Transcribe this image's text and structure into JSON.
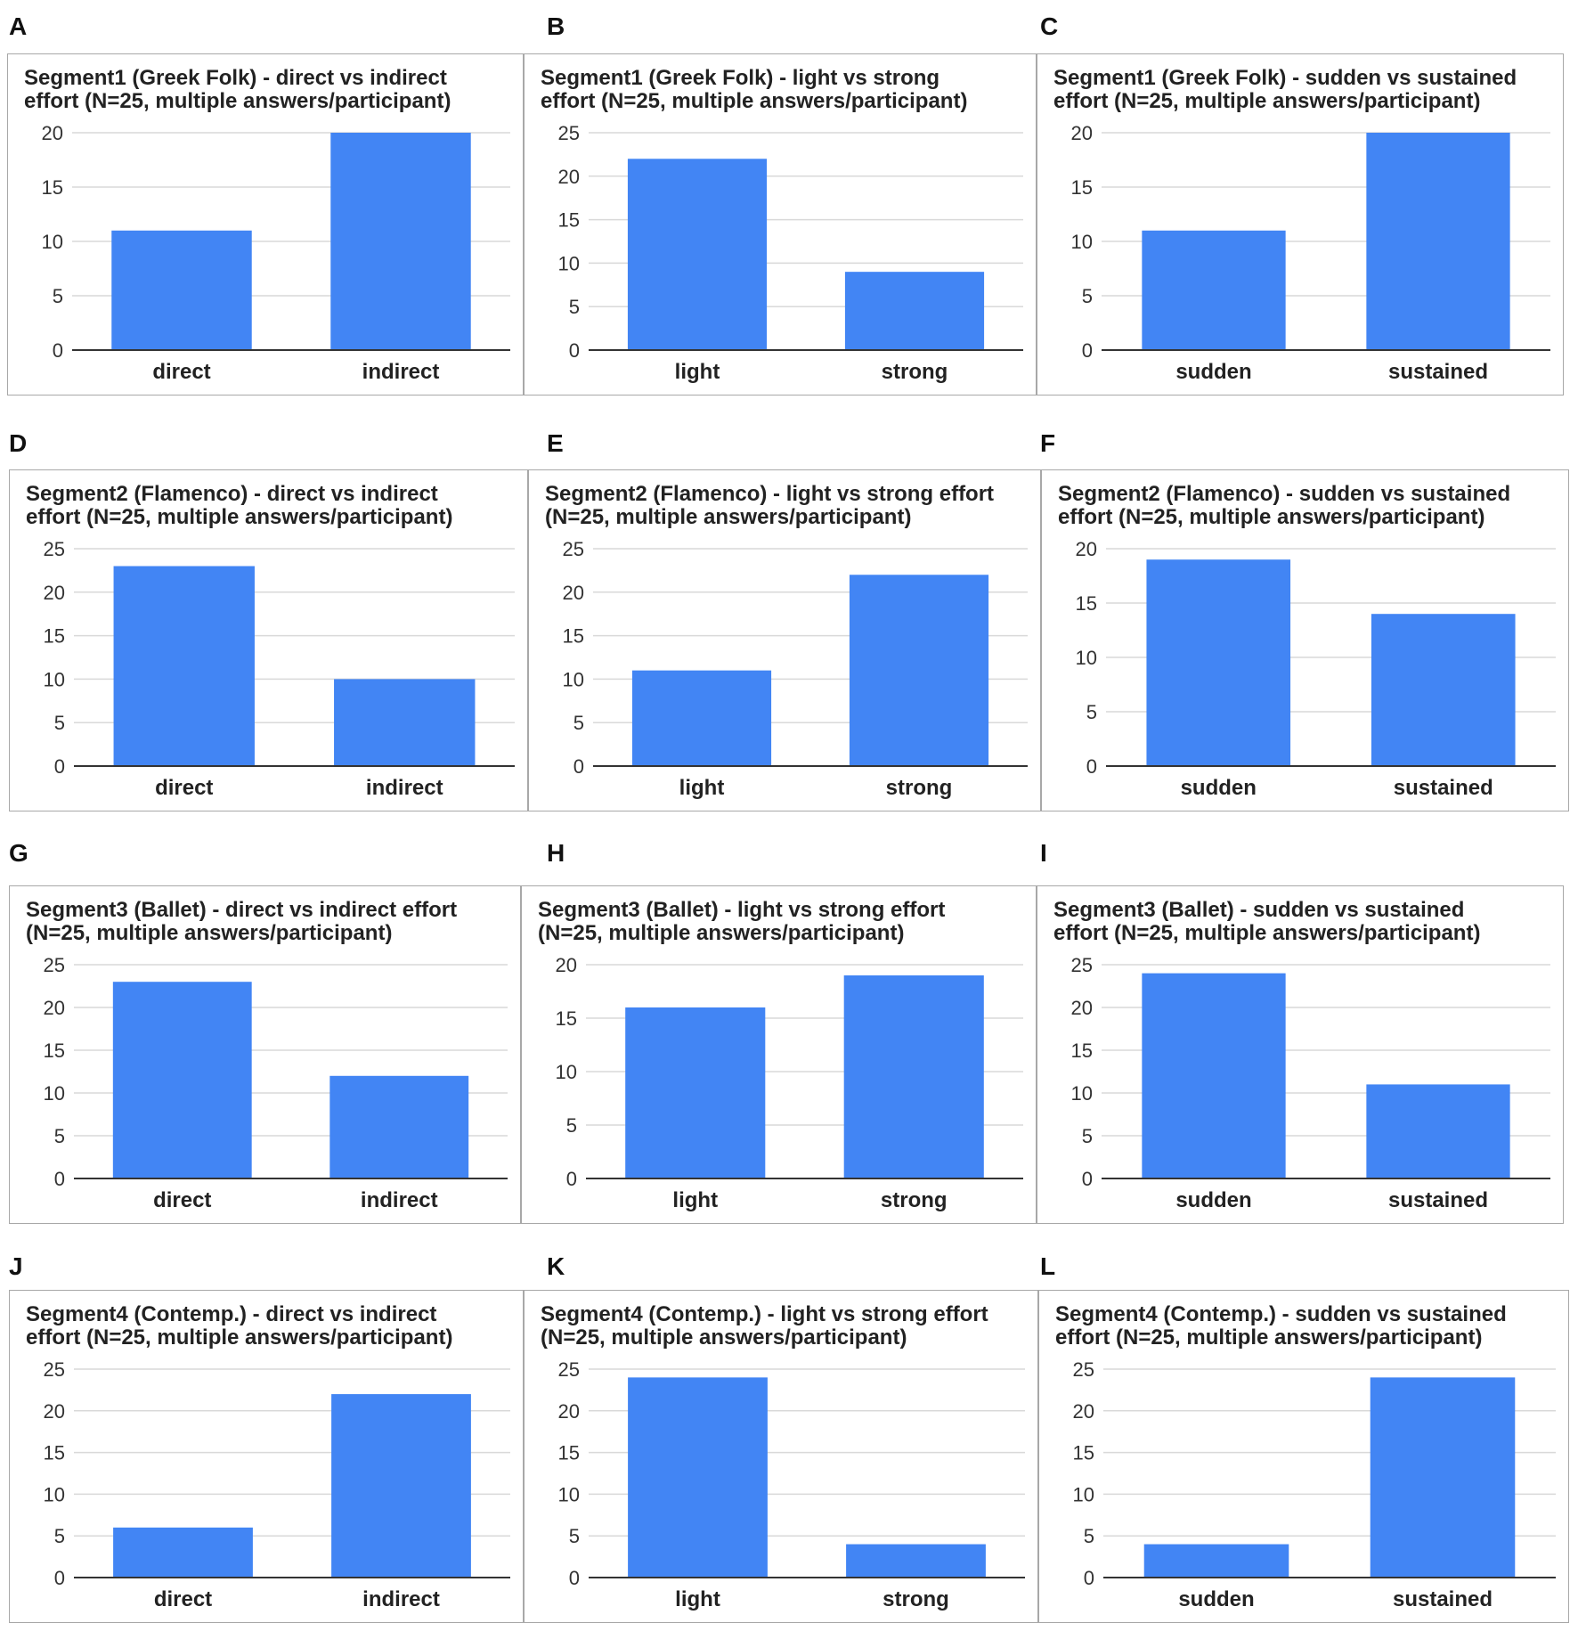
{
  "colors": {
    "bar": "#4285f4",
    "grid": "#d9d9d9",
    "axis": "#333333"
  },
  "chart_data": [
    {
      "panel": "A",
      "type": "bar",
      "title": "Segment1 (Greek Folk) - direct vs indirect\neffort (N=25, multiple answers/participant)",
      "categories": [
        "direct",
        "indirect"
      ],
      "values": [
        11,
        20
      ],
      "ylim": [
        0,
        20
      ],
      "yticks": [
        0,
        5,
        10,
        15,
        20
      ],
      "xlabel": "",
      "ylabel": ""
    },
    {
      "panel": "B",
      "type": "bar",
      "title": "Segment1 (Greek Folk) - light vs strong\neffort (N=25, multiple answers/participant)",
      "categories": [
        "light",
        "strong"
      ],
      "values": [
        22,
        9
      ],
      "ylim": [
        0,
        25
      ],
      "yticks": [
        0,
        5,
        10,
        15,
        20,
        25
      ],
      "xlabel": "",
      "ylabel": ""
    },
    {
      "panel": "C",
      "type": "bar",
      "title": "Segment1 (Greek Folk) - sudden vs sustained\neffort (N=25, multiple answers/participant)",
      "categories": [
        "sudden",
        "sustained"
      ],
      "values": [
        11,
        20
      ],
      "ylim": [
        0,
        20
      ],
      "yticks": [
        0,
        5,
        10,
        15,
        20
      ],
      "xlabel": "",
      "ylabel": ""
    },
    {
      "panel": "D",
      "type": "bar",
      "title": "Segment2 (Flamenco) - direct vs indirect\neffort (N=25, multiple answers/participant)",
      "categories": [
        "direct",
        "indirect"
      ],
      "values": [
        23,
        10
      ],
      "ylim": [
        0,
        25
      ],
      "yticks": [
        0,
        5,
        10,
        15,
        20,
        25
      ],
      "xlabel": "",
      "ylabel": ""
    },
    {
      "panel": "E",
      "type": "bar",
      "title": "Segment2 (Flamenco) - light vs strong effort\n(N=25, multiple answers/participant)",
      "categories": [
        "light",
        "strong"
      ],
      "values": [
        11,
        22
      ],
      "ylim": [
        0,
        25
      ],
      "yticks": [
        0,
        5,
        10,
        15,
        20,
        25
      ],
      "xlabel": "",
      "ylabel": ""
    },
    {
      "panel": "F",
      "type": "bar",
      "title": "Segment2 (Flamenco) - sudden vs sustained\neffort (N=25, multiple answers/participant)",
      "categories": [
        "sudden",
        "sustained"
      ],
      "values": [
        19,
        14
      ],
      "ylim": [
        0,
        20
      ],
      "yticks": [
        0,
        5,
        10,
        15,
        20
      ],
      "xlabel": "",
      "ylabel": ""
    },
    {
      "panel": "G",
      "type": "bar",
      "title": "Segment3 (Ballet) - direct vs indirect effort\n(N=25, multiple answers/participant)",
      "categories": [
        "direct",
        "indirect"
      ],
      "values": [
        23,
        12
      ],
      "ylim": [
        0,
        25
      ],
      "yticks": [
        0,
        5,
        10,
        15,
        20,
        25
      ],
      "xlabel": "",
      "ylabel": ""
    },
    {
      "panel": "H",
      "type": "bar",
      "title": "Segment3 (Ballet) - light vs strong effort\n(N=25, multiple answers/participant)",
      "categories": [
        "light",
        "strong"
      ],
      "values": [
        16,
        19
      ],
      "ylim": [
        0,
        20
      ],
      "yticks": [
        0,
        5,
        10,
        15,
        20
      ],
      "xlabel": "",
      "ylabel": ""
    },
    {
      "panel": "I",
      "type": "bar",
      "title": "Segment3 (Ballet) - sudden vs sustained\neffort (N=25, multiple answers/participant)",
      "categories": [
        "sudden",
        "sustained"
      ],
      "values": [
        24,
        11
      ],
      "ylim": [
        0,
        25
      ],
      "yticks": [
        0,
        5,
        10,
        15,
        20,
        25
      ],
      "xlabel": "",
      "ylabel": ""
    },
    {
      "panel": "J",
      "type": "bar",
      "title": "Segment4 (Contemp.) - direct vs indirect\neffort (N=25, multiple answers/participant)",
      "categories": [
        "direct",
        "indirect"
      ],
      "values": [
        6,
        22
      ],
      "ylim": [
        0,
        25
      ],
      "yticks": [
        0,
        5,
        10,
        15,
        20,
        25
      ],
      "xlabel": "",
      "ylabel": ""
    },
    {
      "panel": "K",
      "type": "bar",
      "title": "Segment4 (Contemp.) - light vs strong effort\n(N=25, multiple answers/participant)",
      "categories": [
        "light",
        "strong"
      ],
      "values": [
        24,
        4
      ],
      "ylim": [
        0,
        25
      ],
      "yticks": [
        0,
        5,
        10,
        15,
        20,
        25
      ],
      "xlabel": "",
      "ylabel": ""
    },
    {
      "panel": "L",
      "type": "bar",
      "title": "Segment4 (Contemp.) - sudden vs sustained\neffort (N=25, multiple answers/participant)",
      "categories": [
        "sudden",
        "sustained"
      ],
      "values": [
        4,
        24
      ],
      "ylim": [
        0,
        25
      ],
      "yticks": [
        0,
        5,
        10,
        15,
        20,
        25
      ],
      "xlabel": "",
      "ylabel": ""
    }
  ]
}
